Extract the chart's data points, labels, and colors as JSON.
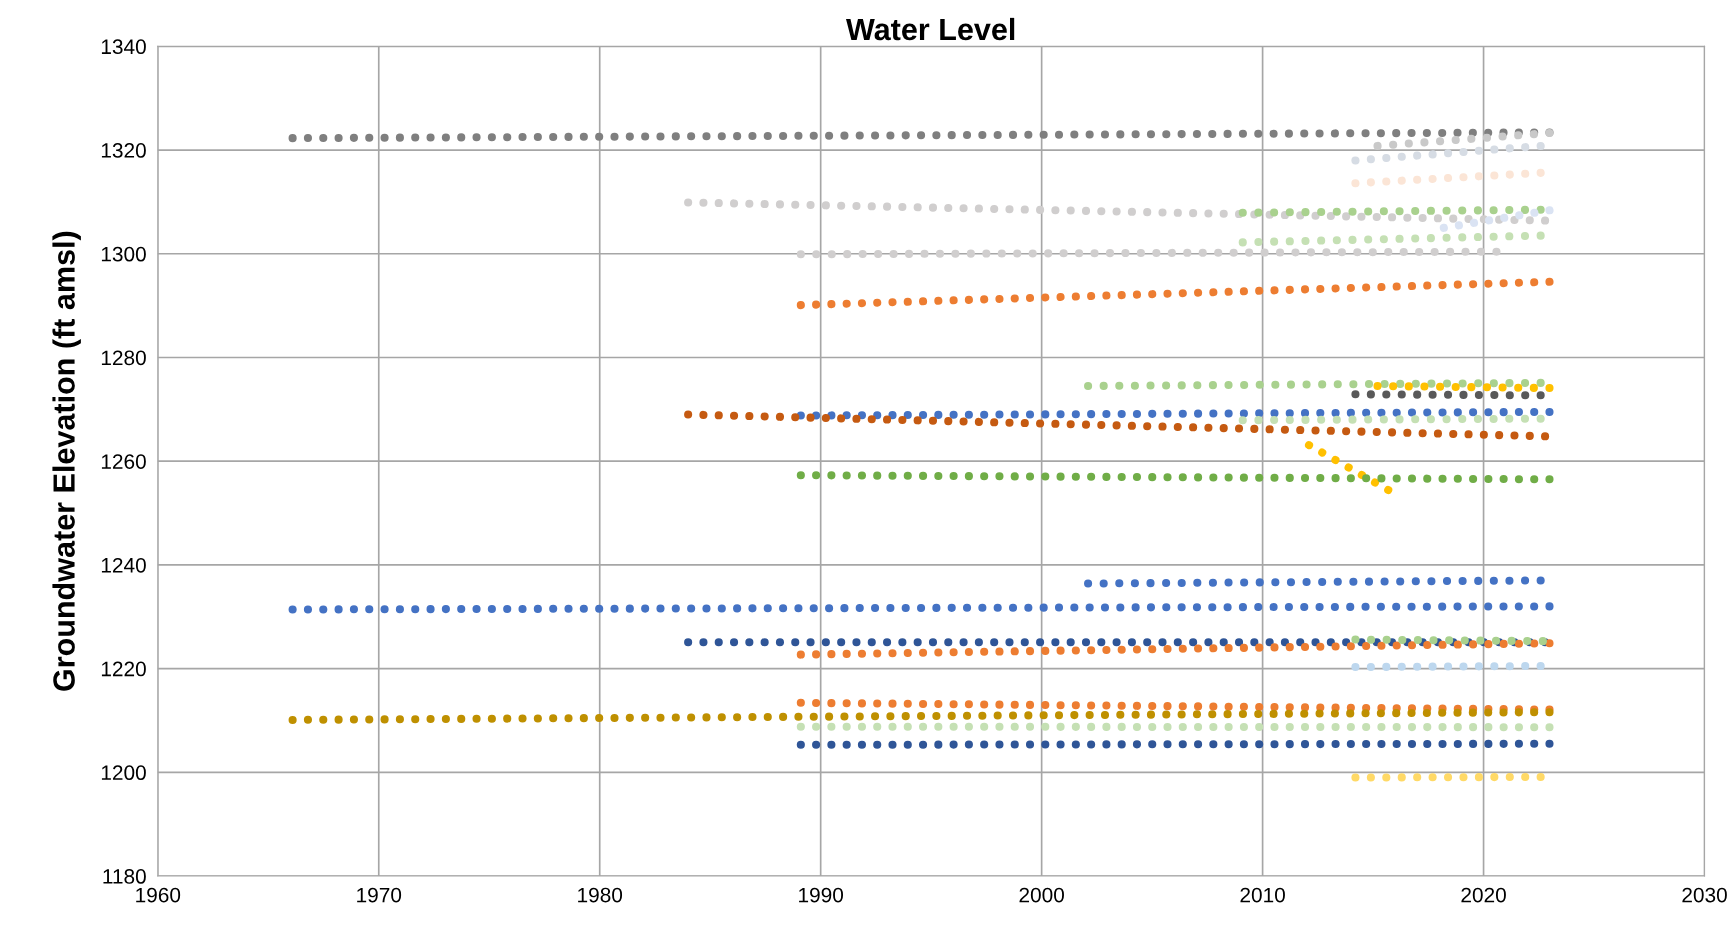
{
  "chart_data": {
    "type": "line",
    "title": "Water Level",
    "ylabel": "Groundwater Elevation (ft amsl)",
    "xlim": [
      1960,
      2030
    ],
    "xticks": [
      1960,
      1970,
      1980,
      1990,
      2000,
      2010,
      2020,
      2030
    ],
    "ylim": [
      1180,
      1340
    ],
    "yticks": [
      1180,
      1200,
      1220,
      1240,
      1260,
      1280,
      1300,
      1320,
      1340
    ],
    "grid": true,
    "marker": "none",
    "line_style": "dotted",
    "series": [
      {
        "color": "#7f7f7f",
        "x": [
          1966.1,
          2023
        ],
        "values": [
          1322.3,
          1323.4
        ]
      },
      {
        "color": "#c9c9c9",
        "x": [
          2015.2,
          2023
        ],
        "values": [
          1320.8,
          1323.3
        ]
      },
      {
        "color": "#d6dce4",
        "x": [
          2014.2,
          2022.6
        ],
        "values": [
          1318,
          1320.8
        ]
      },
      {
        "color": "#fbe5d6",
        "x": [
          2014.2,
          2022.6
        ],
        "values": [
          1313.6,
          1315.6
        ]
      },
      {
        "color": "#d0cece",
        "x": [
          1984,
          2022.8
        ],
        "values": [
          1309.9,
          1306.4
        ]
      },
      {
        "color": "#a9d18e",
        "x": [
          2009.1,
          2022.6
        ],
        "values": [
          1307.9,
          1308.5
        ]
      },
      {
        "color": "#dae3f3",
        "x": [
          2018.2,
          2023
        ],
        "values": [
          1305,
          1308.4
        ]
      },
      {
        "color": "#c5e0b4",
        "x": [
          2009.1,
          2022.6
        ],
        "values": [
          1302.2,
          1303.5
        ]
      },
      {
        "color": "#d0cece",
        "x": [
          1989.1,
          2020.6
        ],
        "values": [
          1299.9,
          1300.4
        ]
      },
      {
        "color": "#ed7d31",
        "x": [
          1989.1,
          2023
        ],
        "values": [
          1290.1,
          1294.6
        ]
      },
      {
        "color": "#a9d18e",
        "x": [
          2002.1,
          2022.6
        ],
        "values": [
          1274.5,
          1275.1
        ]
      },
      {
        "color": "#ffc000",
        "x": [
          2015.2,
          2023
        ],
        "values": [
          1274.5,
          1274.1
        ]
      },
      {
        "color": "#595959",
        "x": [
          2014.2,
          2022.6
        ],
        "values": [
          1272.9,
          1272.7
        ]
      },
      {
        "color": "#4472c4",
        "x": [
          1989.1,
          2023
        ],
        "values": [
          1268.8,
          1269.5
        ]
      },
      {
        "color": "#c5e0b4",
        "x": [
          2009.1,
          2022.6
        ],
        "values": [
          1267.9,
          1268.2
        ]
      },
      {
        "color": "#c55a11",
        "x": [
          1984,
          2022.8
        ],
        "values": [
          1269,
          1264.8
        ]
      },
      {
        "color": "#ffc000",
        "x": [
          2012.1,
          2015.7
        ],
        "values": [
          1263.1,
          1254.4
        ]
      },
      {
        "color": "#70ad47",
        "x": [
          1989.1,
          2023
        ],
        "values": [
          1257.3,
          1256.5
        ]
      },
      {
        "color": "#4472c4",
        "x": [
          2002.1,
          2022.6
        ],
        "values": [
          1236.4,
          1237
        ]
      },
      {
        "color": "#4472c4",
        "x": [
          1966.1,
          2023
        ],
        "values": [
          1231.4,
          1232
        ]
      },
      {
        "color": "#2f5597",
        "x": [
          1984,
          2022.8
        ],
        "values": [
          1225.1,
          1225.1
        ]
      },
      {
        "color": "#ed7d31",
        "x": [
          1989.1,
          2023
        ],
        "values": [
          1222.7,
          1224.9
        ]
      },
      {
        "color": "#a9d18e",
        "x": [
          2014.2,
          2022.7
        ],
        "values": [
          1225.6,
          1225.3
        ]
      },
      {
        "color": "#bdd7ee",
        "x": [
          2014.2,
          2022.6
        ],
        "values": [
          1220.3,
          1220.5
        ]
      },
      {
        "color": "#ed7d31",
        "x": [
          1989.1,
          2023
        ],
        "values": [
          1213.4,
          1212.1
        ]
      },
      {
        "color": "#bf9000",
        "x": [
          1966.1,
          2023
        ],
        "values": [
          1210.1,
          1211.6
        ]
      },
      {
        "color": "#c5e0b4",
        "x": [
          1989.1,
          2023
        ],
        "values": [
          1208.8,
          1208.7
        ]
      },
      {
        "color": "#2f5597",
        "x": [
          1989.1,
          2023
        ],
        "values": [
          1205.3,
          1205.5
        ]
      },
      {
        "color": "#ffd966",
        "x": [
          2014.2,
          2022.6
        ],
        "values": [
          1199,
          1199.1
        ]
      }
    ]
  }
}
